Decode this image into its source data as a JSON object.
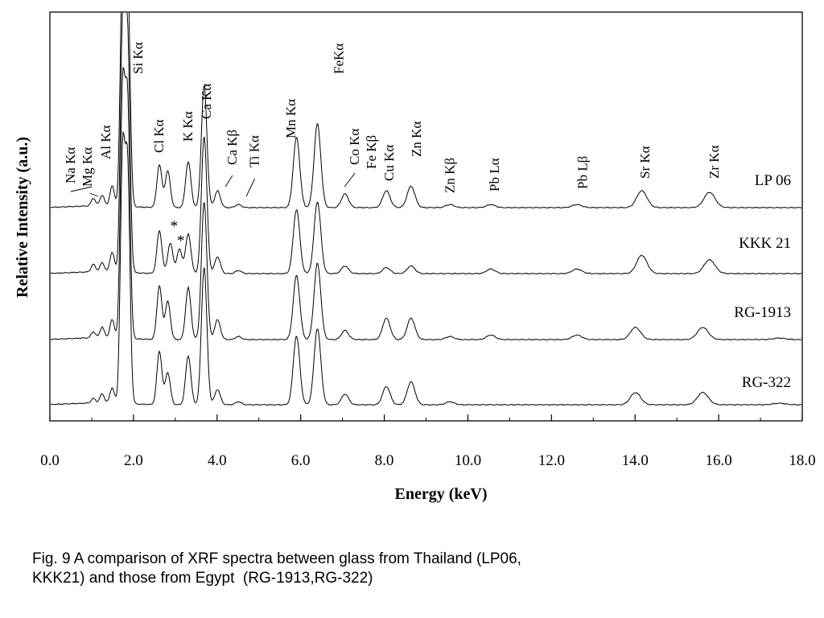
{
  "chart_data": {
    "type": "line",
    "xlabel": "Energy (keV)",
    "ylabel": "Relative Intensity (a.u.)",
    "xlim": [
      0,
      18
    ],
    "x_ticks": [
      "0.0",
      "2.0",
      "4.0",
      "6.0",
      "8.0",
      "10.0",
      "12.0",
      "14.0",
      "16.0",
      "18.0"
    ],
    "series": [
      {
        "name": "LP 06",
        "peaks": [
          [
            1.04,
            0.05
          ],
          [
            1.25,
            0.07
          ],
          [
            1.49,
            0.13
          ],
          [
            1.74,
            1.6
          ],
          [
            1.86,
            1.5
          ],
          [
            2.62,
            0.28
          ],
          [
            2.82,
            0.24
          ],
          [
            3.31,
            0.3
          ],
          [
            3.69,
            0.8
          ],
          [
            4.01,
            0.11
          ],
          [
            4.51,
            0.02
          ],
          [
            5.9,
            0.46
          ],
          [
            6.4,
            0.55
          ],
          [
            7.06,
            0.09
          ],
          [
            8.05,
            0.11
          ],
          [
            8.64,
            0.14
          ],
          [
            9.57,
            0.02
          ],
          [
            10.55,
            0.02
          ],
          [
            12.61,
            0.02
          ],
          [
            14.16,
            0.11
          ],
          [
            15.78,
            0.1
          ]
        ]
      },
      {
        "name": "KKK 21",
        "peaks": [
          [
            1.04,
            0.05
          ],
          [
            1.25,
            0.06
          ],
          [
            1.49,
            0.13
          ],
          [
            1.74,
            1.6
          ],
          [
            1.86,
            1.5
          ],
          [
            2.62,
            0.28
          ],
          [
            2.88,
            0.2
          ],
          [
            3.1,
            0.16
          ],
          [
            3.31,
            0.26
          ],
          [
            3.69,
            0.9
          ],
          [
            4.01,
            0.11
          ],
          [
            4.51,
            0.02
          ],
          [
            5.9,
            0.42
          ],
          [
            6.4,
            0.47
          ],
          [
            7.06,
            0.05
          ],
          [
            8.05,
            0.04
          ],
          [
            8.64,
            0.05
          ],
          [
            10.55,
            0.03
          ],
          [
            12.61,
            0.03
          ],
          [
            14.16,
            0.12
          ],
          [
            15.78,
            0.09
          ]
        ]
      },
      {
        "name": "RG-1913",
        "peaks": [
          [
            1.04,
            0.04
          ],
          [
            1.25,
            0.07
          ],
          [
            1.49,
            0.12
          ],
          [
            1.74,
            1.6
          ],
          [
            1.86,
            1.5
          ],
          [
            2.62,
            0.35
          ],
          [
            2.82,
            0.25
          ],
          [
            3.31,
            0.34
          ],
          [
            3.69,
            0.9
          ],
          [
            4.01,
            0.13
          ],
          [
            4.51,
            0.02
          ],
          [
            5.9,
            0.42
          ],
          [
            6.4,
            0.5
          ],
          [
            7.06,
            0.06
          ],
          [
            8.05,
            0.14
          ],
          [
            8.64,
            0.14
          ],
          [
            9.57,
            0.02
          ],
          [
            10.55,
            0.03
          ],
          [
            12.61,
            0.03
          ],
          [
            14.01,
            0.08
          ],
          [
            15.62,
            0.08
          ],
          [
            17.45,
            0.01
          ]
        ]
      },
      {
        "name": "RG-322",
        "peaks": [
          [
            1.04,
            0.03
          ],
          [
            1.25,
            0.06
          ],
          [
            1.49,
            0.1
          ],
          [
            1.74,
            1.6
          ],
          [
            1.86,
            1.5
          ],
          [
            2.62,
            0.35
          ],
          [
            2.82,
            0.21
          ],
          [
            3.31,
            0.32
          ],
          [
            3.69,
            0.9
          ],
          [
            4.01,
            0.1
          ],
          [
            4.51,
            0.02
          ],
          [
            5.9,
            0.45
          ],
          [
            6.4,
            0.5
          ],
          [
            7.06,
            0.07
          ],
          [
            8.05,
            0.12
          ],
          [
            8.64,
            0.15
          ],
          [
            9.57,
            0.02
          ],
          [
            14.01,
            0.08
          ],
          [
            15.62,
            0.08
          ],
          [
            17.45,
            0.01
          ]
        ]
      }
    ],
    "peak_labels": [
      {
        "text": "Na Kα",
        "energy": 0.5
      },
      {
        "text": "Mg Kα",
        "energy": 0.9
      },
      {
        "text": "Al Kα",
        "energy": 1.35
      },
      {
        "text": "Si Kα",
        "energy": 2.12
      },
      {
        "text": "Cl Kα",
        "energy": 2.62
      },
      {
        "text": "K Kα",
        "energy": 3.31
      },
      {
        "text": "Ca Kα",
        "energy": 3.75
      },
      {
        "text": "Ca Kβ",
        "energy": 4.37
      },
      {
        "text": "Ti Kα",
        "energy": 4.9
      },
      {
        "text": "Mn Kα",
        "energy": 5.78
      },
      {
        "text": "FeKα",
        "energy": 6.92
      },
      {
        "text": "Co Kα",
        "energy": 7.3
      },
      {
        "text": "Fe Kβ",
        "energy": 7.7
      },
      {
        "text": "Cu Kα",
        "energy": 8.12
      },
      {
        "text": "Zn Kα",
        "energy": 8.78
      },
      {
        "text": "Zn Kβ",
        "energy": 9.58
      },
      {
        "text": "Pb Lα",
        "energy": 10.65
      },
      {
        "text": "Pb Lβ",
        "energy": 12.75
      },
      {
        "text": "Sr Kα",
        "energy": 14.25
      },
      {
        "text": "Zr Kα",
        "energy": 15.9
      }
    ],
    "annotations": [
      "*",
      "*"
    ]
  },
  "caption": {
    "line1": "Fig. 9 A comparison of XRF spectra between glass from Thailand (LP06,",
    "line2": "KKK21) and those from Egypt  (RG-1913,RG-322)"
  }
}
